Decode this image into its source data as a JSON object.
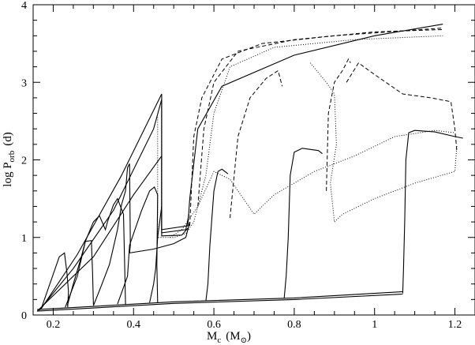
{
  "chart_data": {
    "type": "line",
    "title": "",
    "xlabel_main": "M",
    "xlabel_sub": "c",
    "xlabel_unit_open": "(M",
    "xlabel_unit_sub": "⊙",
    "xlabel_unit_close": ")",
    "ylabel_main": "log P",
    "ylabel_sub": "orb",
    "ylabel_unit": "(d)",
    "xlim": [
      0.15,
      1.25
    ],
    "ylim": [
      0,
      4
    ],
    "x_ticks": [
      "0.2",
      "0.4",
      "0.6",
      "0.8",
      "1",
      "1.2"
    ],
    "x_tick_values": [
      0.2,
      0.4,
      0.6,
      0.8,
      1.0,
      1.2
    ],
    "y_ticks": [
      "0",
      "1",
      "2",
      "3",
      "4"
    ],
    "y_tick_values": [
      0,
      1,
      2,
      3,
      4
    ],
    "grid": false,
    "series": [
      {
        "style": "solid",
        "points": [
          [
            0.16,
            0.05
          ],
          [
            0.2,
            0.25
          ],
          [
            0.3,
            0.75
          ],
          [
            0.4,
            1.55
          ],
          [
            0.47,
            2.05
          ],
          [
            0.47,
            1.02
          ],
          [
            0.52,
            1.03
          ],
          [
            0.535,
            1.12
          ]
        ]
      },
      {
        "style": "solid",
        "points": [
          [
            0.165,
            0.06
          ],
          [
            0.25,
            0.6
          ],
          [
            0.35,
            1.35
          ],
          [
            0.45,
            2.4
          ],
          [
            0.47,
            2.78
          ],
          [
            0.47,
            1.06
          ],
          [
            0.53,
            1.1
          ],
          [
            0.538,
            1.3
          ]
        ]
      },
      {
        "style": "solid",
        "points": [
          [
            0.17,
            0.08
          ],
          [
            0.26,
            0.78
          ],
          [
            0.37,
            1.8
          ],
          [
            0.47,
            2.85
          ],
          [
            0.47,
            1.1
          ],
          [
            0.535,
            1.15
          ],
          [
            0.54,
            1.5
          ],
          [
            0.56,
            2.4
          ],
          [
            0.62,
            2.95
          ],
          [
            0.8,
            3.35
          ],
          [
            1.0,
            3.6
          ],
          [
            1.17,
            3.75
          ]
        ]
      },
      {
        "style": "solid",
        "points": [
          [
            0.17,
            0.08
          ],
          [
            0.215,
            0.75
          ],
          [
            0.228,
            0.8
          ],
          [
            0.234,
            0.55
          ],
          [
            0.238,
            0.3
          ],
          [
            0.236,
            0.1
          ]
        ]
      },
      {
        "style": "solid",
        "points": [
          [
            0.235,
            0.12
          ],
          [
            0.25,
            0.4
          ],
          [
            0.27,
            0.75
          ],
          [
            0.28,
            0.95
          ],
          [
            0.3,
            1.2
          ],
          [
            0.315,
            1.28
          ],
          [
            0.33,
            1.1
          ],
          [
            0.335,
            1.2
          ],
          [
            0.35,
            1.42
          ],
          [
            0.36,
            1.5
          ],
          [
            0.375,
            1.3
          ],
          [
            0.378,
            0.6
          ],
          [
            0.38,
            0.13
          ]
        ]
      },
      {
        "style": "solid",
        "points": [
          [
            0.23,
            0.1
          ],
          [
            0.26,
            0.5
          ],
          [
            0.28,
            0.95
          ],
          [
            0.295,
            0.96
          ],
          [
            0.298,
            0.55
          ],
          [
            0.3,
            0.13
          ]
        ]
      },
      {
        "style": "solid",
        "points": [
          [
            0.3,
            0.12
          ],
          [
            0.32,
            0.38
          ],
          [
            0.34,
            0.65
          ],
          [
            0.36,
            1.1
          ],
          [
            0.37,
            1.42
          ],
          [
            0.38,
            1.6
          ],
          [
            0.385,
            1.9
          ],
          [
            0.39,
            1.95
          ],
          [
            0.392,
            0.9
          ],
          [
            0.39,
            0.8
          ],
          [
            0.45,
            0.85
          ],
          [
            0.5,
            0.92
          ],
          [
            0.53,
            1.0
          ],
          [
            0.54,
            1.2
          ]
        ]
      },
      {
        "style": "solid",
        "points": [
          [
            0.36,
            0.14
          ],
          [
            0.385,
            0.5
          ],
          [
            0.39,
            0.9
          ],
          [
            0.42,
            1.35
          ],
          [
            0.44,
            1.6
          ],
          [
            0.452,
            1.65
          ],
          [
            0.46,
            1.55
          ],
          [
            0.458,
            0.65
          ],
          [
            0.46,
            0.16
          ]
        ]
      },
      {
        "style": "solid",
        "points": [
          [
            0.44,
            0.16
          ],
          [
            0.45,
            0.4
          ],
          [
            0.455,
            0.6
          ],
          [
            0.46,
            1.0
          ],
          [
            0.47,
            1.4
          ]
        ]
      },
      {
        "style": "solid",
        "points": [
          [
            0.58,
            0.18
          ],
          [
            0.585,
            0.4
          ],
          [
            0.59,
            0.9
          ],
          [
            0.6,
            1.6
          ],
          [
            0.61,
            1.85
          ],
          [
            0.62,
            1.88
          ],
          [
            0.635,
            1.82
          ]
        ]
      },
      {
        "style": "solid",
        "points": [
          [
            0.775,
            0.22
          ],
          [
            0.78,
            0.5
          ],
          [
            0.785,
            1.0
          ],
          [
            0.79,
            1.8
          ],
          [
            0.8,
            2.1
          ],
          [
            0.82,
            2.15
          ],
          [
            0.86,
            2.12
          ],
          [
            0.87,
            2.08
          ]
        ]
      },
      {
        "style": "solid",
        "points": [
          [
            1.07,
            0.28
          ],
          [
            1.072,
            0.6
          ],
          [
            1.075,
            1.2
          ],
          [
            1.078,
            2.0
          ],
          [
            1.085,
            2.35
          ],
          [
            1.1,
            2.38
          ],
          [
            1.15,
            2.36
          ],
          [
            1.2,
            2.3
          ],
          [
            1.22,
            2.28
          ]
        ]
      },
      {
        "style": "solid",
        "points": [
          [
            0.16,
            0.07
          ],
          [
            0.5,
            0.17
          ],
          [
            0.8,
            0.22
          ],
          [
            1.07,
            0.3
          ]
        ]
      },
      {
        "style": "solid",
        "points": [
          [
            0.16,
            0.05
          ],
          [
            0.5,
            0.15
          ],
          [
            0.8,
            0.2
          ],
          [
            1.07,
            0.27
          ]
        ]
      },
      {
        "style": "dashed",
        "points": [
          [
            0.54,
            1.15
          ],
          [
            0.55,
            2.3
          ],
          [
            0.57,
            2.8
          ],
          [
            0.62,
            3.3
          ],
          [
            0.72,
            3.5
          ],
          [
            0.9,
            3.6
          ],
          [
            1.17,
            3.7
          ]
        ]
      },
      {
        "style": "dashed",
        "points": [
          [
            0.56,
            1.4
          ],
          [
            0.575,
            2.4
          ],
          [
            0.6,
            3.0
          ],
          [
            0.66,
            3.4
          ],
          [
            0.8,
            3.55
          ],
          [
            1.0,
            3.65
          ],
          [
            1.17,
            3.68
          ]
        ]
      },
      {
        "style": "dashed",
        "points": [
          [
            0.64,
            1.25
          ],
          [
            0.66,
            2.3
          ],
          [
            0.69,
            2.8
          ],
          [
            0.73,
            3.05
          ],
          [
            0.76,
            3.15
          ],
          [
            0.77,
            2.95
          ]
        ]
      },
      {
        "style": "dashed",
        "points": [
          [
            0.88,
            1.6
          ],
          [
            0.885,
            2.6
          ],
          [
            0.9,
            3.0
          ],
          [
            0.92,
            3.15
          ],
          [
            0.935,
            3.3
          ],
          [
            0.94,
            3.25
          ]
        ]
      },
      {
        "style": "dashed",
        "points": [
          [
            0.93,
            3.0
          ],
          [
            0.96,
            3.25
          ],
          [
            1.0,
            3.1
          ],
          [
            1.07,
            2.85
          ],
          [
            1.14,
            2.8
          ],
          [
            1.19,
            2.75
          ],
          [
            1.2,
            2.4
          ],
          [
            1.205,
            2.1
          ]
        ]
      },
      {
        "style": "dotted",
        "points": [
          [
            0.46,
            2.55
          ],
          [
            0.46,
            1.0
          ],
          [
            0.5,
            1.0
          ],
          [
            0.53,
            1.05
          ],
          [
            0.55,
            1.2
          ],
          [
            0.58,
            1.8
          ],
          [
            0.6,
            2.6
          ],
          [
            0.64,
            3.2
          ],
          [
            0.75,
            3.45
          ],
          [
            0.95,
            3.55
          ],
          [
            1.17,
            3.6
          ]
        ]
      },
      {
        "style": "dotted",
        "points": [
          [
            0.49,
            1.0
          ],
          [
            0.52,
            1.1
          ],
          [
            0.56,
            1.4
          ],
          [
            0.6,
            1.85
          ],
          [
            0.64,
            1.75
          ],
          [
            0.7,
            1.3
          ],
          [
            0.75,
            1.55
          ],
          [
            0.85,
            1.85
          ],
          [
            0.95,
            2.05
          ],
          [
            1.05,
            2.3
          ],
          [
            1.15,
            2.38
          ],
          [
            1.2,
            2.35
          ]
        ]
      },
      {
        "style": "dotted",
        "points": [
          [
            0.84,
            3.25
          ],
          [
            0.88,
            3.0
          ],
          [
            0.9,
            2.85
          ],
          [
            0.905,
            2.2
          ],
          [
            0.89,
            1.7
          ],
          [
            0.9,
            1.2
          ],
          [
            0.92,
            1.3
          ],
          [
            1.0,
            1.5
          ],
          [
            1.1,
            1.7
          ],
          [
            1.2,
            1.85
          ],
          [
            1.205,
            2.2
          ]
        ]
      }
    ]
  }
}
